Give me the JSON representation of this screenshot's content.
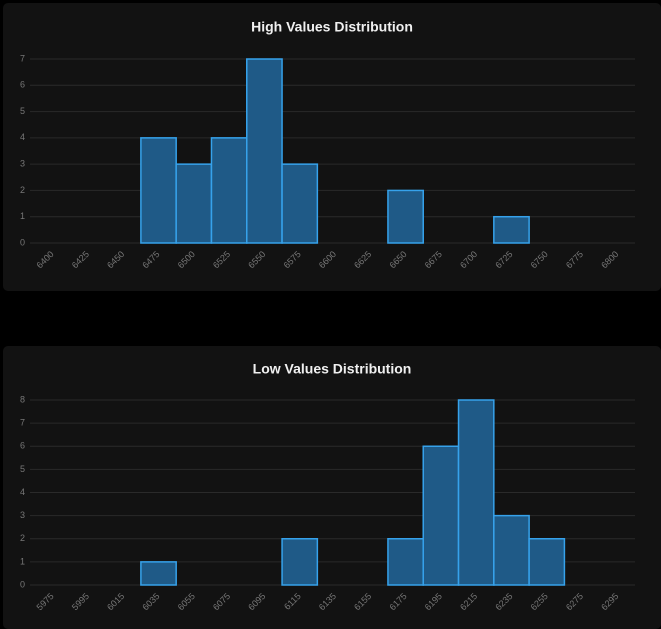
{
  "chart_data": [
    {
      "type": "bar",
      "title": "High Values Distribution",
      "categories": [
        "6400",
        "6425",
        "6450",
        "6475",
        "6500",
        "6525",
        "6550",
        "6575",
        "6600",
        "6625",
        "6650",
        "6675",
        "6700",
        "6725",
        "6750",
        "6775",
        "6800"
      ],
      "values": [
        0,
        0,
        0,
        4,
        3,
        4,
        7,
        3,
        0,
        0,
        2,
        0,
        0,
        1,
        0,
        0,
        0
      ],
      "color": "#1f5a87",
      "border_color": "#36a2eb",
      "ylim": [
        0,
        7
      ],
      "yticks": [
        0,
        1,
        2,
        3,
        4,
        5,
        6,
        7
      ],
      "grid": true
    },
    {
      "type": "bar",
      "title": "Low Values Distribution",
      "categories": [
        "5975",
        "5995",
        "6015",
        "6035",
        "6055",
        "6075",
        "6095",
        "6115",
        "6135",
        "6155",
        "6175",
        "6195",
        "6215",
        "6235",
        "6255",
        "6275",
        "6295"
      ],
      "values": [
        0,
        0,
        0,
        1,
        0,
        0,
        0,
        2,
        0,
        0,
        2,
        6,
        8,
        3,
        2,
        0,
        0
      ],
      "color": "#1f5a87",
      "border_color": "#36a2eb",
      "ylim": [
        0,
        8
      ],
      "yticks": [
        0,
        1,
        2,
        3,
        4,
        5,
        6,
        7,
        8
      ],
      "grid": true
    }
  ]
}
